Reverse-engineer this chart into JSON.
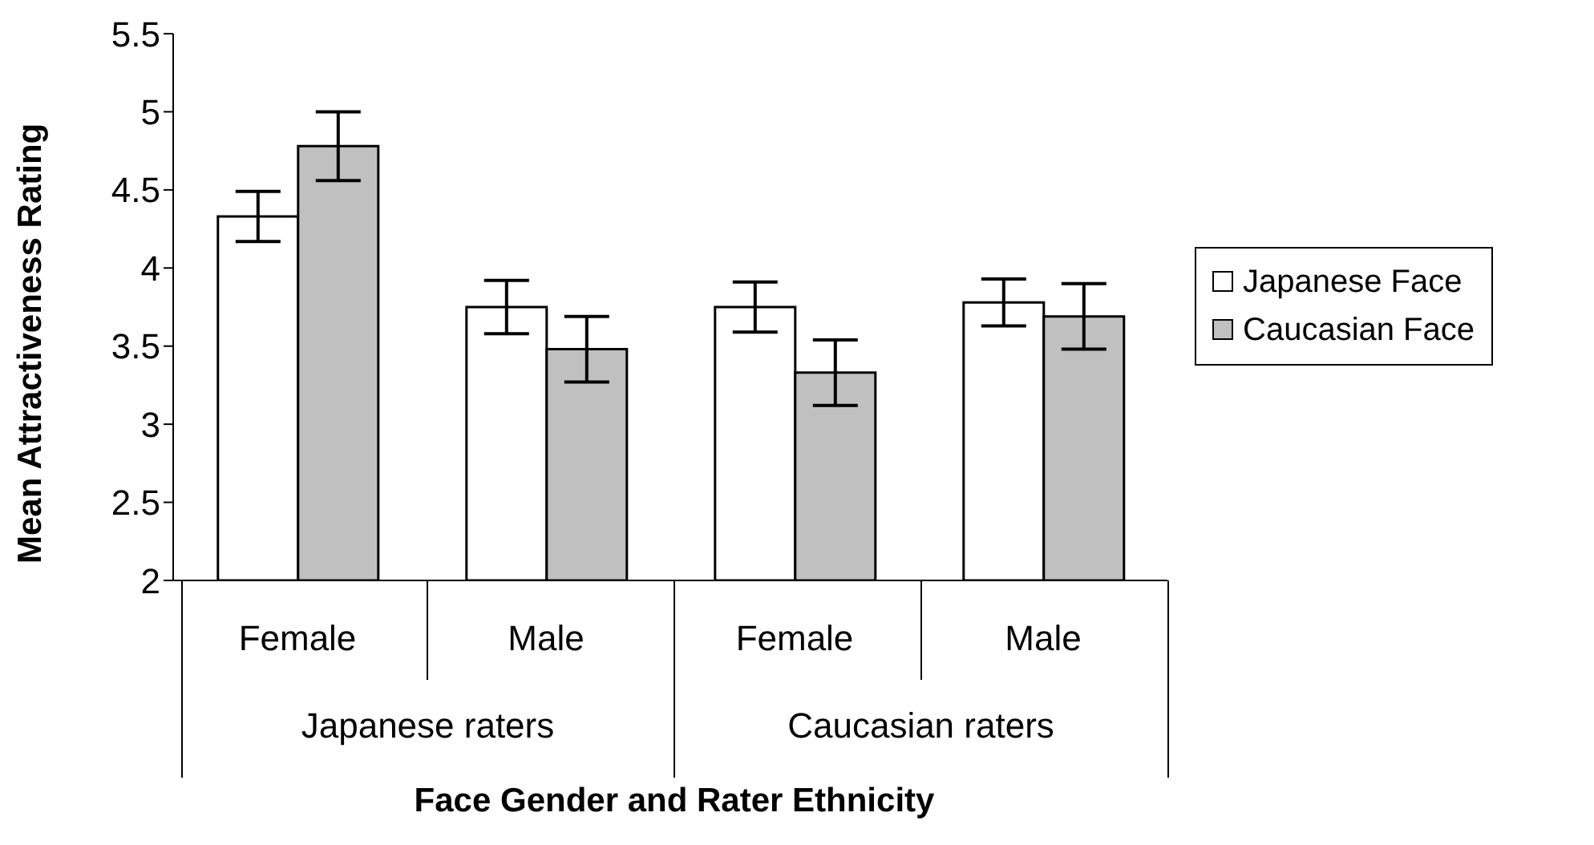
{
  "chart_data": {
    "type": "bar",
    "xlabel": "Face Gender and Rater Ethnicity",
    "ylabel": "Mean Attractiveness Rating",
    "categories": [
      "Female",
      "Male",
      "Female",
      "Male"
    ],
    "series": [
      {
        "name": "Japanese Face",
        "color": "#ffffff",
        "values": [
          4.33,
          3.75,
          3.75,
          3.78
        ],
        "errors": [
          0.16,
          0.17,
          0.16,
          0.15
        ]
      },
      {
        "name": "Caucasian Face",
        "color": "#c0c0c0",
        "values": [
          4.78,
          3.48,
          3.33,
          3.69
        ],
        "errors": [
          0.22,
          0.21,
          0.21,
          0.21
        ]
      }
    ],
    "ylim": [
      2,
      5.5
    ],
    "yticks": [
      2,
      2.5,
      3,
      3.5,
      4,
      4.5,
      5,
      5.5
    ],
    "grid": false,
    "legend": "right",
    "annotations": [
      "Japanese raters",
      "Caucasian raters"
    ]
  }
}
